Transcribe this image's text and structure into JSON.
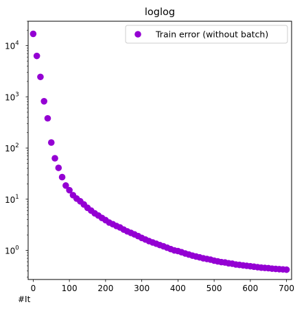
{
  "chart_data": {
    "type": "scatter",
    "title": "loglog",
    "xlabel": "#It",
    "ylabel": "",
    "xlim": [
      -14,
      714
    ],
    "ylim": [
      0.27,
      30000
    ],
    "yscale": "log",
    "grid": false,
    "legend_position": "top-right",
    "marker_color": "#9400d3",
    "xticks": [
      0,
      100,
      200,
      300,
      400,
      500,
      600,
      700
    ],
    "yticks": [
      {
        "value": 1,
        "base": "10",
        "exp": "0"
      },
      {
        "value": 10,
        "base": "10",
        "exp": "1"
      },
      {
        "value": 100,
        "base": "10",
        "exp": "2"
      },
      {
        "value": 1000,
        "base": "10",
        "exp": "3"
      },
      {
        "value": 10000,
        "base": "10",
        "exp": "4"
      }
    ],
    "series": [
      {
        "name": "Train error (without batch)",
        "x": [
          0,
          10,
          20,
          30,
          40,
          50,
          60,
          70,
          80,
          90,
          100,
          110,
          120,
          130,
          140,
          150,
          160,
          170,
          180,
          190,
          200,
          210,
          220,
          230,
          240,
          250,
          260,
          270,
          280,
          290,
          300,
          310,
          320,
          330,
          340,
          350,
          360,
          370,
          380,
          390,
          400,
          410,
          420,
          430,
          440,
          450,
          460,
          470,
          480,
          490,
          500,
          510,
          520,
          530,
          540,
          550,
          560,
          570,
          580,
          590,
          600,
          610,
          620,
          630,
          640,
          650,
          660,
          670,
          680,
          690,
          700
        ],
        "y": [
          17000,
          6300,
          2450,
          820,
          380,
          128,
          63,
          41,
          27,
          18.5,
          15,
          12,
          10.3,
          9.1,
          7.9,
          6.8,
          6,
          5.3,
          4.8,
          4.3,
          3.9,
          3.5,
          3.25,
          3.0,
          2.8,
          2.55,
          2.35,
          2.2,
          2.05,
          1.9,
          1.75,
          1.63,
          1.52,
          1.43,
          1.35,
          1.27,
          1.2,
          1.13,
          1.06,
          1.0,
          0.97,
          0.92,
          0.87,
          0.83,
          0.79,
          0.76,
          0.73,
          0.7,
          0.68,
          0.66,
          0.63,
          0.61,
          0.59,
          0.58,
          0.56,
          0.55,
          0.53,
          0.52,
          0.51,
          0.5,
          0.49,
          0.48,
          0.47,
          0.46,
          0.455,
          0.45,
          0.44,
          0.435,
          0.43,
          0.425,
          0.42
        ]
      }
    ]
  }
}
